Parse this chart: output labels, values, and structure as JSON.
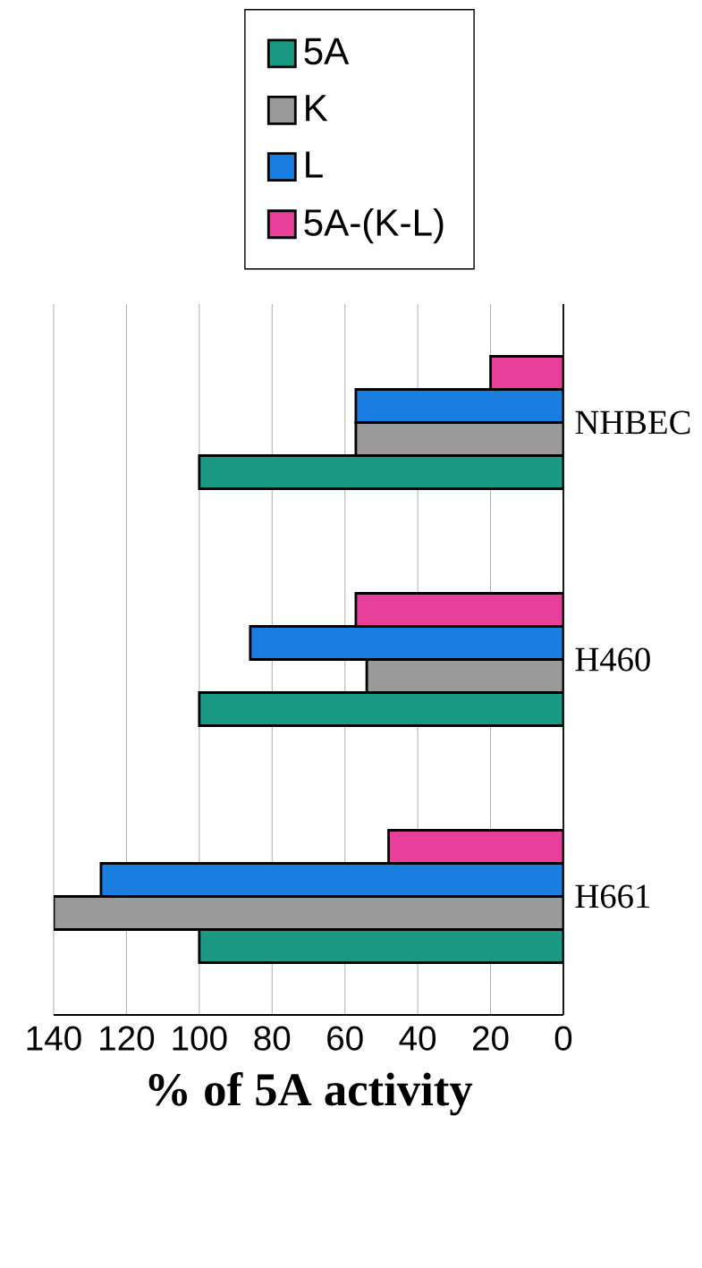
{
  "chart_data": {
    "type": "bar",
    "orientation": "horizontal",
    "xlabel": "% of 5A activity",
    "categories": [
      "NHBEC",
      "H460",
      "H661"
    ],
    "series": [
      {
        "name": "5A",
        "color": "#1a9a84",
        "values": [
          100,
          100,
          100
        ]
      },
      {
        "name": "K",
        "color": "#9a9a9a",
        "values": [
          57,
          54,
          140
        ]
      },
      {
        "name": "L",
        "color": "#1a7ee0",
        "values": [
          57,
          86,
          127
        ]
      },
      {
        "name": "5A-(K-L)",
        "color": "#e8409a",
        "values": [
          20,
          57,
          48
        ]
      }
    ],
    "xlim": [
      140,
      0
    ],
    "xticks": [
      140,
      120,
      100,
      80,
      60,
      40,
      20,
      0
    ],
    "grid": "x",
    "legend": "top right"
  }
}
